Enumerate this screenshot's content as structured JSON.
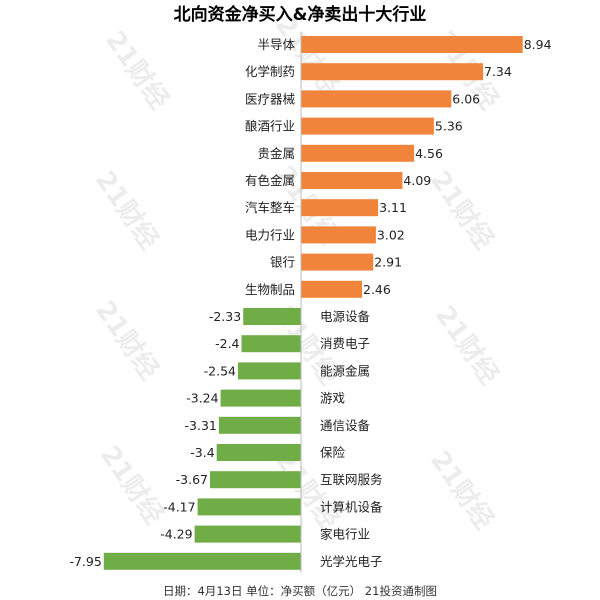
{
  "chart_data": {
    "type": "bar",
    "title": "北向资金净买入&净卖出十大行业",
    "categories": [
      "半导体",
      "化学制药",
      "医疗器械",
      "酿酒行业",
      "贵金属",
      "有色金属",
      "汽车整车",
      "电力行业",
      "银行",
      "生物制品",
      "电源设备",
      "消费电子",
      "能源金属",
      "游戏",
      "通信设备",
      "保险",
      "互联网服务",
      "计算机设备",
      "家电行业",
      "光学光电子"
    ],
    "values": [
      8.94,
      7.34,
      6.06,
      5.36,
      4.56,
      4.09,
      3.11,
      3.02,
      2.91,
      2.46,
      -2.33,
      -2.4,
      -2.54,
      -3.24,
      -3.31,
      -3.4,
      -3.67,
      -4.17,
      -4.29,
      -7.95
    ],
    "value_labels": [
      "8.94",
      "7.34",
      "6.06",
      "5.36",
      "4.56",
      "4.09",
      "3.11",
      "3.02",
      "2.91",
      "2.46",
      "-2.33",
      "-2.4",
      "-2.54",
      "-3.24",
      "-3.31",
      "-3.4",
      "-3.67",
      "-4.17",
      "-4.29",
      "-7.95"
    ],
    "xlim": [
      -8.4,
      9.6
    ],
    "colors": {
      "positive": "#F0843A",
      "negative": "#71AD47"
    },
    "footer": "日期：4月13日 单位：净买额（亿元） 21投资通制图",
    "watermark": "21财经",
    "grid": false,
    "legend": "none"
  }
}
